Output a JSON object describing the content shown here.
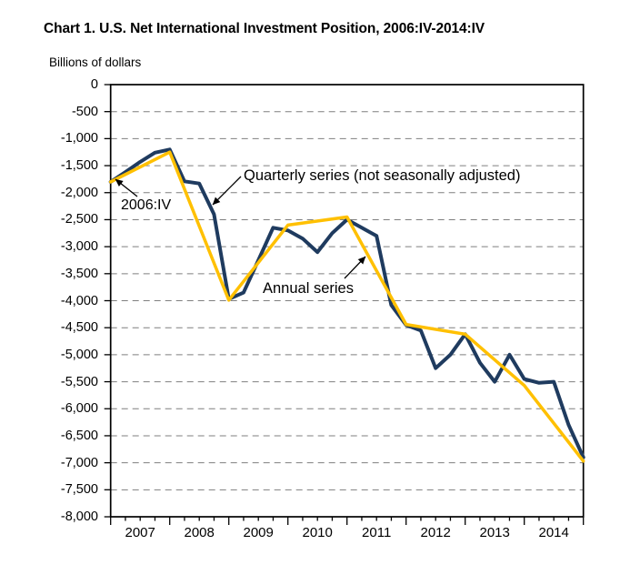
{
  "title": "Chart 1. U.S. Net International Investment Position, 2006:IV-2014:IV",
  "units_label": "Billions  of dollars",
  "colors": {
    "quarterly_line": "#1f3b5f",
    "annual_line": "#ffc000",
    "gridline": "#7f7f7f",
    "axis": "#000000"
  },
  "chart_data": {
    "type": "line",
    "title": "Chart 1. U.S. Net International Investment Position, 2006:IV-2014:IV",
    "ylabel": "Billions of dollars",
    "ylim": [
      -8000,
      0
    ],
    "ytick_step": 500,
    "grid": "dashed horizontal",
    "legend_position": "inline annotations with arrows",
    "y_axis": {
      "ticks": [
        "0",
        "-500",
        "-1,000",
        "-1,500",
        "-2,000",
        "-2,500",
        "-3,000",
        "-3,500",
        "-4,000",
        "-4,500",
        "-5,000",
        "-5,500",
        "-6,000",
        "-6,500",
        "-7,000",
        "-7,500",
        "-8,000"
      ]
    },
    "x_axis": {
      "ticks": [
        "2007",
        "2008",
        "2009",
        "2010",
        "2011",
        "2012",
        "2013",
        "2014"
      ],
      "minor_ticks": "quarterly"
    },
    "series": [
      {
        "name": "Quarterly series (not seasonally adjusted)",
        "color": "#1f3b5f",
        "x": [
          "2006:IV",
          "2007:I",
          "2007:II",
          "2007:III",
          "2007:IV",
          "2008:I",
          "2008:II",
          "2008:III",
          "2008:IV",
          "2009:I",
          "2009:II",
          "2009:III",
          "2009:IV",
          "2010:I",
          "2010:II",
          "2010:III",
          "2010:IV",
          "2011:I",
          "2011:II",
          "2011:III",
          "2011:IV",
          "2012:I",
          "2012:II",
          "2012:III",
          "2012:IV",
          "2013:I",
          "2013:II",
          "2013:III",
          "2013:IV",
          "2014:I",
          "2014:II",
          "2014:III",
          "2014:IV"
        ],
        "values": [
          -1800,
          -1620,
          -1430,
          -1260,
          -1200,
          -1790,
          -1830,
          -2400,
          -3970,
          -3850,
          -3250,
          -2650,
          -2700,
          -2850,
          -3100,
          -2750,
          -2500,
          -2650,
          -2800,
          -4080,
          -4450,
          -4550,
          -5250,
          -5000,
          -4620,
          -5150,
          -5500,
          -5000,
          -5450,
          -5520,
          -5500,
          -6300,
          -6900
        ]
      },
      {
        "name": "Annual series",
        "color": "#ffc000",
        "x": [
          "2006:IV",
          "2007:IV",
          "2008:IV",
          "2009:IV",
          "2010:IV",
          "2011:IV",
          "2012:IV",
          "2013:IV",
          "2014:IV"
        ],
        "values": [
          -1800,
          -1250,
          -3990,
          -2600,
          -2450,
          -4440,
          -4620,
          -5570,
          -6970
        ]
      }
    ],
    "annotations": [
      {
        "text": "2006:IV",
        "points_to": "first data point of both series"
      },
      {
        "text": "Quarterly series (not seasonally adjusted)",
        "points_to": "quarterly line during 2008 decline"
      },
      {
        "text": "Annual series",
        "points_to": "annual line during 2011 decline"
      }
    ]
  }
}
